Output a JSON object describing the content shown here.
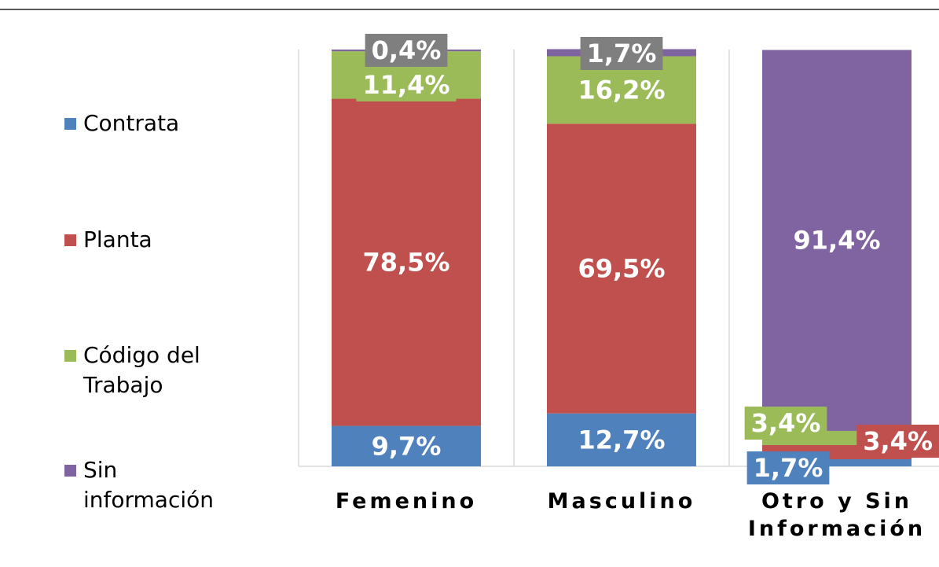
{
  "chart_data": {
    "type": "stacked_bar",
    "categories": [
      "Femenino",
      "Masculino",
      "Otro y Sin Información"
    ],
    "series": [
      {
        "name": "Contrata",
        "color": "#4f81bd",
        "values": [
          9.7,
          12.7,
          1.7
        ],
        "value_labels": [
          "9,7%",
          "12,7%",
          "1,7%"
        ]
      },
      {
        "name": "Planta",
        "color": "#c0504d",
        "values": [
          78.5,
          69.5,
          3.4
        ],
        "value_labels": [
          "78,5%",
          "69,5%",
          "3,4%"
        ]
      },
      {
        "name": "Código del Trabajo",
        "color": "#9bbb59",
        "values": [
          11.4,
          16.2,
          3.4
        ],
        "value_labels": [
          "11,4%",
          "16,2%",
          "3,4%"
        ]
      },
      {
        "name": "Sin información",
        "color": "#8064a2",
        "values": [
          0.4,
          1.7,
          91.4
        ],
        "value_labels": [
          "0,4%",
          "1,7%",
          "91,4%"
        ]
      }
    ],
    "ylim": [
      0,
      100
    ],
    "legend": "left"
  }
}
